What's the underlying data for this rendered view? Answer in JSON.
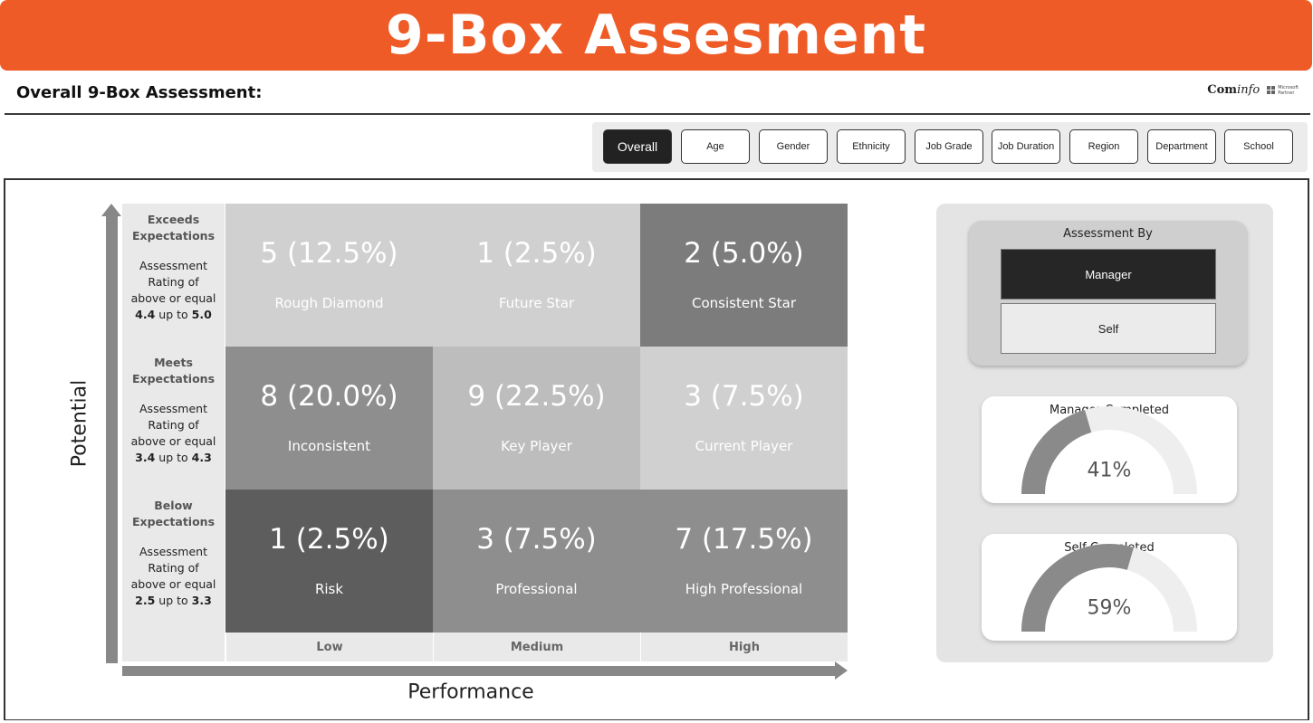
{
  "header": {
    "title": "9-Box Assesment",
    "subtitle": "Overall 9-Box Assessment:",
    "logo": {
      "brand_bold": "Com",
      "brand_italic": "info",
      "partner_line1": "Microsoft",
      "partner_line2": "Partner"
    }
  },
  "filters": [
    {
      "label": "Overall",
      "active": true
    },
    {
      "label": "Age",
      "active": false
    },
    {
      "label": "Gender",
      "active": false
    },
    {
      "label": "Ethnicity",
      "active": false
    },
    {
      "label": "Job Grade",
      "active": false
    },
    {
      "label": "Job Duration",
      "active": false
    },
    {
      "label": "Region",
      "active": false
    },
    {
      "label": "Department",
      "active": false
    },
    {
      "label": "School",
      "active": false
    }
  ],
  "grid": {
    "y_axis_title": "Potential",
    "x_axis_title": "Performance",
    "rows": [
      {
        "title_line1": "Exceeds",
        "title_line2": "Expectations",
        "desc_line1": "Assessment",
        "desc_line2": "Rating of",
        "desc_line3": "above or equal",
        "range_low": "4.4",
        "range_word": " up to ",
        "range_high": "5.0"
      },
      {
        "title_line1": "Meets",
        "title_line2": "Expectations",
        "desc_line1": "Assessment",
        "desc_line2": "Rating of",
        "desc_line3": "above or equal",
        "range_low": "3.4",
        "range_word": " up to ",
        "range_high": "4.3"
      },
      {
        "title_line1": "Below",
        "title_line2": "Expectations",
        "desc_line1": "Assessment",
        "desc_line2": "Rating of",
        "desc_line3": "above or equal",
        "range_low": "2.5",
        "range_word": " up to ",
        "range_high": "3.3"
      }
    ],
    "columns": [
      "Low",
      "Medium",
      "High"
    ],
    "cells": [
      [
        {
          "value": "5 (12.5%)",
          "label": "Rough Diamond",
          "color": "#d0d0d0"
        },
        {
          "value": "1 (2.5%)",
          "label": "Future Star",
          "color": "#d0d0d0"
        },
        {
          "value": "2 (5.0%)",
          "label": "Consistent Star",
          "color": "#7c7c7c"
        }
      ],
      [
        {
          "value": "8 (20.0%)",
          "label": "Inconsistent",
          "color": "#8e8e8e"
        },
        {
          "value": "9 (22.5%)",
          "label": "Key Player",
          "color": "#bdbdbd"
        },
        {
          "value": "3 (7.5%)",
          "label": "Current Player",
          "color": "#d0d0d0"
        }
      ],
      [
        {
          "value": "1 (2.5%)",
          "label": "Risk",
          "color": "#5d5d5d"
        },
        {
          "value": "3 (7.5%)",
          "label": "Professional",
          "color": "#8e8e8e"
        },
        {
          "value": "7 (17.5%)",
          "label": "High Professional",
          "color": "#8e8e8e"
        }
      ]
    ]
  },
  "assessment_by": {
    "title": "Assessment By",
    "options": [
      {
        "label": "Manager",
        "active": true
      },
      {
        "label": "Self",
        "active": false
      }
    ]
  },
  "gauges": [
    {
      "title": "Manager Completed",
      "value": "41%",
      "fraction": 0.41,
      "fill_color": "#8a8a8a",
      "track_color": "#eeeeee"
    },
    {
      "title": "Self Completed",
      "value": "59%",
      "fraction": 0.59,
      "fill_color": "#8a8a8a",
      "track_color": "#eeeeee"
    }
  ]
}
